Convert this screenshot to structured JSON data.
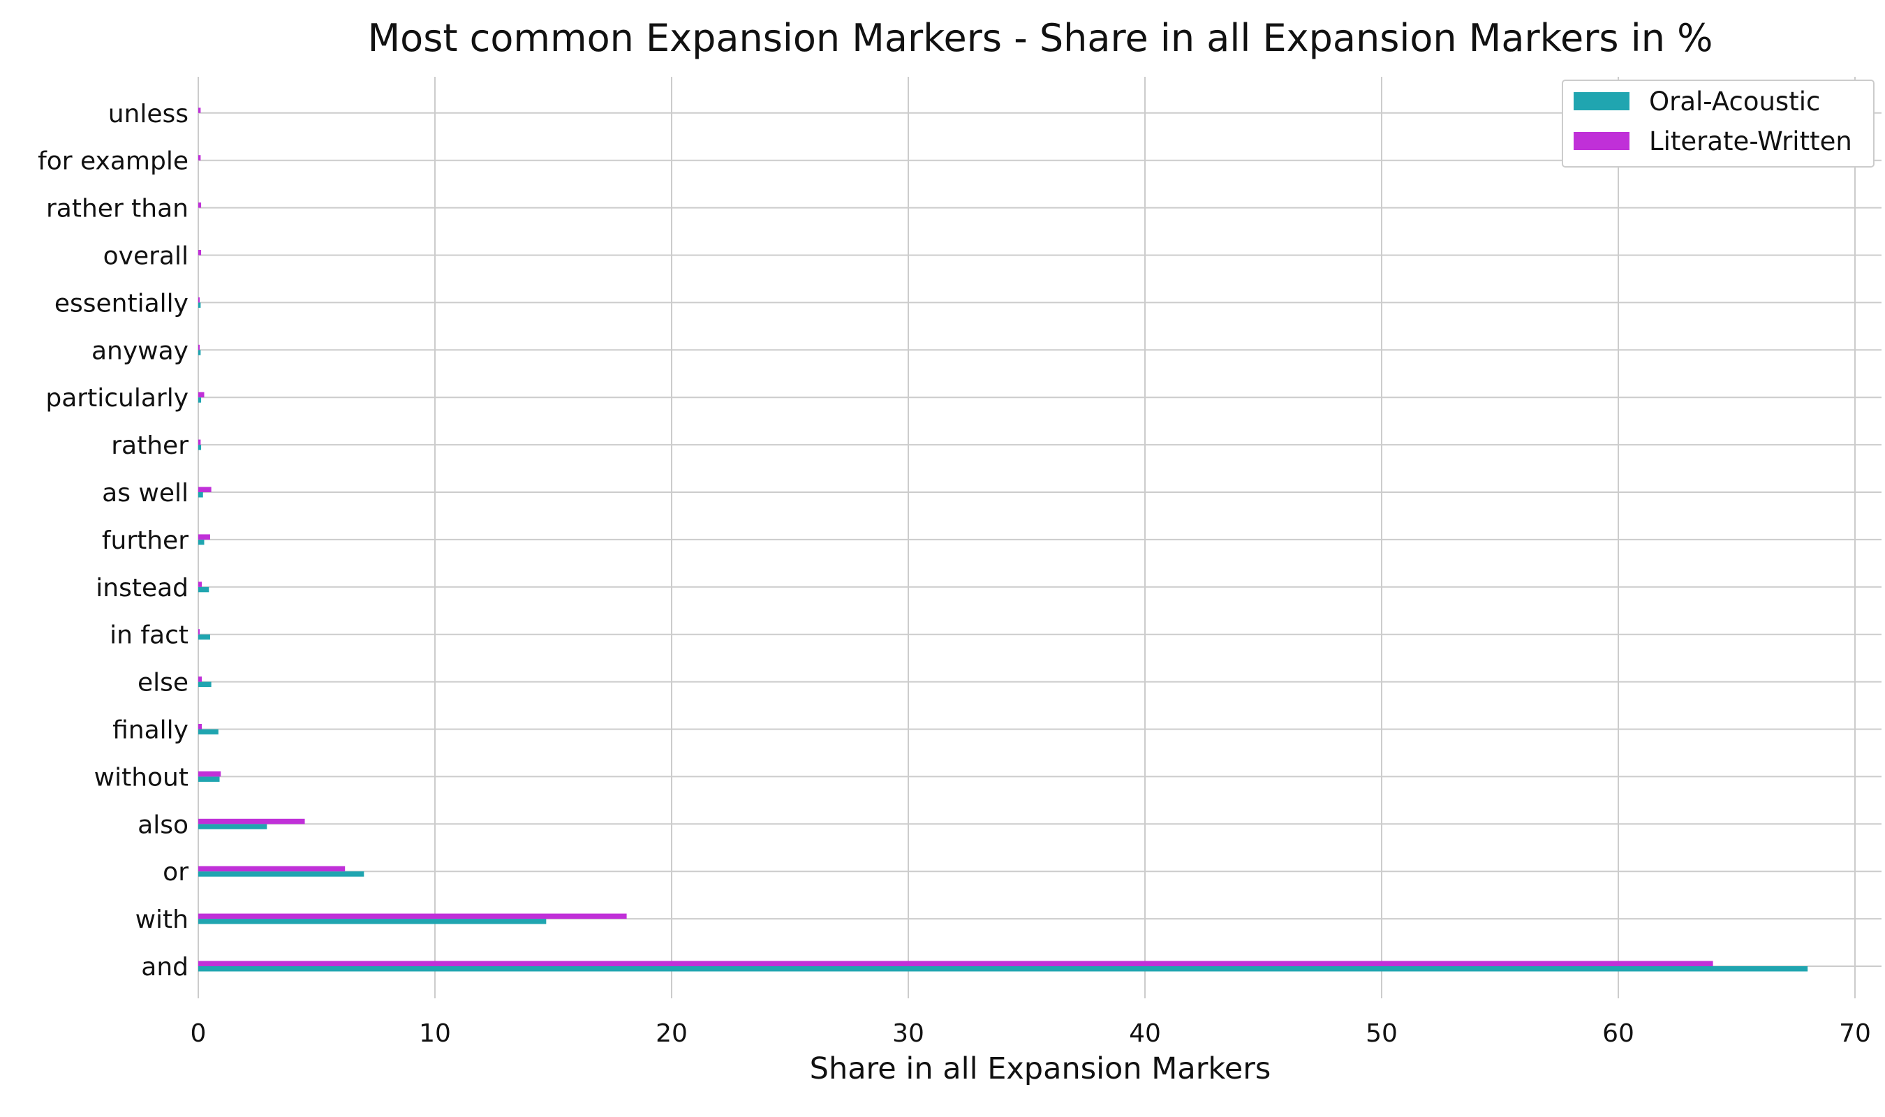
{
  "chart_data": {
    "type": "bar",
    "orientation": "horizontal",
    "title": "Most common Expansion Markers - Share in all Expansion Markers in %",
    "xlabel": "Share in all Expansion Markers",
    "ylabel": "",
    "xlim": [
      0,
      71
    ],
    "xticks": [
      "0",
      "10",
      "20",
      "30",
      "40",
      "50",
      "60",
      "70"
    ],
    "grid": true,
    "legend_position": "top-right",
    "categories": [
      "and",
      "with",
      "or",
      "also",
      "without",
      "finally",
      "else",
      "in fact",
      "instead",
      "further",
      "as well",
      "rather",
      "particularly",
      "anyway",
      "essentially",
      "overall",
      "rather than",
      "for example",
      "unless"
    ],
    "series": [
      {
        "name": "Oral-Acoustic",
        "color": "#20a5b0",
        "values": [
          68.0,
          14.7,
          7.0,
          2.9,
          0.9,
          0.85,
          0.55,
          0.5,
          0.45,
          0.25,
          0.2,
          0.12,
          0.12,
          0.1,
          0.1,
          0.0,
          0.0,
          0.0,
          0.0
        ]
      },
      {
        "name": "Literate-Written",
        "color": "#c030d8",
        "values": [
          64.0,
          18.1,
          6.2,
          4.5,
          0.95,
          0.15,
          0.15,
          0.05,
          0.15,
          0.5,
          0.55,
          0.1,
          0.25,
          0.05,
          0.05,
          0.12,
          0.12,
          0.1,
          0.1
        ]
      }
    ]
  }
}
